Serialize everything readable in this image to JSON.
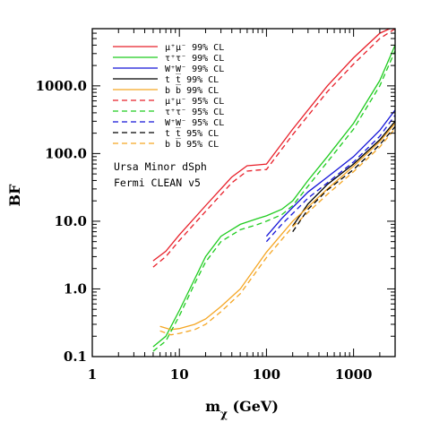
{
  "chart_data": {
    "type": "line",
    "xlabel": "mχ (GeV)",
    "ylabel": "BF",
    "xscale": "log",
    "yscale": "log",
    "xlim": [
      1,
      3000
    ],
    "ylim": [
      0.1,
      7000
    ],
    "grid": false,
    "legend_placement": "top-left",
    "x_ticks": [
      "1",
      "10",
      "100",
      "1000"
    ],
    "y_ticks": [
      "0.1",
      "1.0",
      "10.0",
      "100.0",
      "1000.0"
    ],
    "annotations": [
      "Ursa Minor dSph",
      "Fermi CLEAN v5"
    ],
    "series": [
      {
        "name": "μ⁺μ⁻ 99% CL",
        "color": "#e8202a",
        "style": "solid",
        "x": [
          5,
          7,
          10,
          20,
          40,
          60,
          80,
          100,
          200,
          500,
          1000,
          2000,
          2600
        ],
        "y": [
          2.6,
          3.6,
          6.3,
          17,
          45,
          66,
          68,
          70,
          230,
          1000,
          2600,
          6000,
          7000
        ]
      },
      {
        "name": "τ⁺τ⁻ 99% CL",
        "color": "#1fcc1f",
        "style": "solid",
        "x": [
          5,
          7,
          10,
          15,
          20,
          30,
          50,
          80,
          100,
          150,
          200,
          300,
          500,
          1000,
          2000,
          3000
        ],
        "y": [
          0.14,
          0.2,
          0.48,
          1.4,
          3.0,
          6.0,
          9.0,
          11.0,
          12.0,
          15.0,
          20.0,
          40.0,
          90.0,
          280.0,
          1200.0,
          4000.0
        ]
      },
      {
        "name": "W⁺W⁻ 99% CL",
        "color": "#1414d8",
        "style": "solid",
        "x": [
          100,
          150,
          200,
          300,
          500,
          1000,
          2000,
          3000
        ],
        "y": [
          6.0,
          11.0,
          16.0,
          27.0,
          45.0,
          90.0,
          220.0,
          440.0
        ]
      },
      {
        "name": "t t̅ 99% CL",
        "color": "#000000",
        "style": "solid",
        "x": [
          200,
          300,
          500,
          1000,
          2000,
          3000
        ],
        "y": [
          8.5,
          18.0,
          35.0,
          70.0,
          160.0,
          300.0
        ]
      },
      {
        "name": "b b̅ 99% CL",
        "color": "#f5a623",
        "style": "solid",
        "x": [
          6,
          8,
          10,
          15,
          20,
          30,
          50,
          100,
          200,
          500,
          1000,
          2000,
          3000
        ],
        "y": [
          0.28,
          0.25,
          0.26,
          0.3,
          0.36,
          0.55,
          1.0,
          3.5,
          10.0,
          30.0,
          65.0,
          150.0,
          280.0
        ]
      },
      {
        "name": "μ⁺μ⁻ 95% CL",
        "color": "#e8202a",
        "style": "dashed",
        "x": [
          5,
          7,
          10,
          20,
          40,
          60,
          80,
          100,
          200,
          500,
          1000,
          2000,
          3000
        ],
        "y": [
          2.1,
          3.0,
          5.2,
          14,
          37,
          55,
          57,
          58,
          190,
          820,
          2100,
          5000,
          7000
        ]
      },
      {
        "name": "τ⁺τ⁻ 95% CL",
        "color": "#1fcc1f",
        "style": "dashed",
        "x": [
          5,
          7,
          10,
          15,
          20,
          30,
          50,
          80,
          100,
          150,
          200,
          300,
          500,
          1000,
          2000,
          3000
        ],
        "y": [
          0.12,
          0.17,
          0.4,
          1.2,
          2.5,
          5.0,
          7.5,
          9.0,
          10.0,
          12.5,
          17.0,
          33.0,
          75.0,
          230.0,
          1000.0,
          3300.0
        ]
      },
      {
        "name": "W⁺W⁻ 95% CL",
        "color": "#1414d8",
        "style": "dashed",
        "x": [
          100,
          150,
          200,
          300,
          500,
          1000,
          2000,
          3000
        ],
        "y": [
          5.0,
          9.0,
          13.0,
          22.0,
          37.0,
          75.0,
          180.0,
          370.0
        ]
      },
      {
        "name": "t t̅ 95% CL",
        "color": "#000000",
        "style": "dashed",
        "x": [
          200,
          300,
          500,
          1000,
          2000,
          3000
        ],
        "y": [
          7.0,
          15.0,
          29.0,
          58.0,
          135.0,
          250.0
        ]
      },
      {
        "name": "b b̅ 95% CL",
        "color": "#f5a623",
        "style": "dashed",
        "x": [
          6,
          8,
          10,
          15,
          20,
          30,
          50,
          100,
          200,
          500,
          1000,
          2000,
          3000
        ],
        "y": [
          0.24,
          0.21,
          0.22,
          0.25,
          0.3,
          0.46,
          0.85,
          2.9,
          8.3,
          25.0,
          54.0,
          125.0,
          235.0
        ]
      }
    ]
  }
}
